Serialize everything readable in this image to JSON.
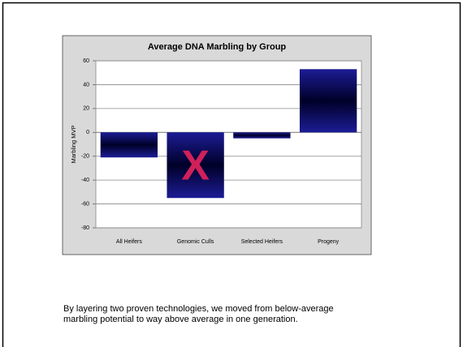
{
  "chart_data": {
    "type": "bar",
    "title": "Average DNA Marbling by Group",
    "y_label": "Marbling MVP",
    "categories": [
      "All Heifers",
      "Genomic Culls",
      "Selected Heifers",
      "Progeny"
    ],
    "values": [
      -21,
      -55,
      -5,
      53
    ],
    "color": "#1c1c96",
    "ylim": [
      -80,
      60
    ],
    "yticks": [
      -80,
      -60,
      -40,
      -20,
      0,
      20,
      40,
      60
    ],
    "grid": true,
    "annotation": {
      "text": "X",
      "category": 1,
      "color": "#d0205a"
    }
  },
  "paragraph": [
    "By layering two proven technologies, we moved from below-average",
    "marbling potential to way above average in one generation."
  ]
}
